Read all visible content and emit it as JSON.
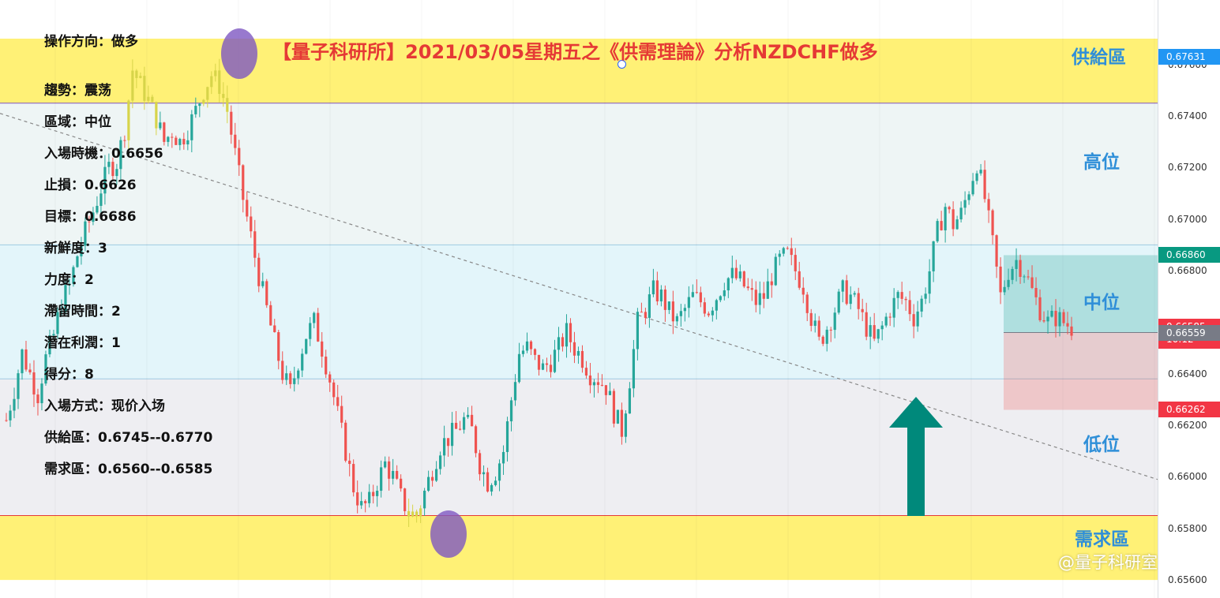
{
  "chart_data": {
    "type": "candlestick",
    "title": "【量子科研所】2021/03/05星期五之《供需理論》分析NZDCHF做多",
    "y_ticks": [
      "0.67600",
      "0.67400",
      "0.67200",
      "0.67000",
      "0.66800",
      "0.66400",
      "0.66200",
      "0.66000",
      "0.65800",
      "0.65600"
    ],
    "ylim": [
      0.6553,
      0.6785
    ],
    "price_tags": [
      {
        "value": "0.67631",
        "color": "#2196f3"
      },
      {
        "value": "0.66860",
        "color": "#089981"
      },
      {
        "value": "0.66585",
        "countdown": "10:12",
        "color": "#f23645"
      },
      {
        "value": "0.66559",
        "color": "#787b86"
      },
      {
        "value": "0.66262",
        "color": "#f23645"
      }
    ],
    "zones": [
      {
        "name": "供給區",
        "from": 0.6745,
        "to": 0.677,
        "color": "#fff176"
      },
      {
        "name": "高位",
        "from": 0.669,
        "to": 0.6745,
        "color": "#eef5f5"
      },
      {
        "name": "中位",
        "from": 0.6638,
        "to": 0.669,
        "color": "#e3f5fa"
      },
      {
        "name": "低位",
        "from": 0.6585,
        "to": 0.6638,
        "color": "#eeeef2"
      },
      {
        "name": "需求區",
        "from": 0.656,
        "to": 0.6585,
        "color": "#fff176"
      }
    ],
    "position": {
      "entry": 0.6656,
      "stop": 0.6626,
      "target": 0.6686
    },
    "trendline": {
      "from": {
        "bar": 0,
        "price": 0.6741
      },
      "to": {
        "bar": 290,
        "price": 0.6599
      }
    },
    "closes": [
      0.6622,
      0.6634,
      0.6648,
      0.664,
      0.6632,
      0.6646,
      0.6655,
      0.6668,
      0.6674,
      0.6686,
      0.6695,
      0.6703,
      0.6712,
      0.672,
      0.6722,
      0.6735,
      0.6758,
      0.6752,
      0.6746,
      0.6739,
      0.673,
      0.6734,
      0.673,
      0.6735,
      0.6742,
      0.675,
      0.6756,
      0.6752,
      0.6742,
      0.6725,
      0.6708,
      0.6693,
      0.6678,
      0.6665,
      0.6652,
      0.664,
      0.6633,
      0.6645,
      0.6655,
      0.666,
      0.665,
      0.6638,
      0.6624,
      0.661,
      0.6596,
      0.6588,
      0.659,
      0.6598,
      0.6605,
      0.66,
      0.6592,
      0.6586,
      0.6585,
      0.6594,
      0.6603,
      0.6612,
      0.6615,
      0.6618,
      0.6622,
      0.6618,
      0.6605,
      0.6598,
      0.6602,
      0.661,
      0.663,
      0.6648,
      0.665,
      0.6645,
      0.6642,
      0.6645,
      0.665,
      0.6656,
      0.665,
      0.6646,
      0.664,
      0.6638,
      0.6635,
      0.6625,
      0.6618,
      0.6638,
      0.666,
      0.6665,
      0.6672,
      0.667,
      0.6664,
      0.666,
      0.6665,
      0.667,
      0.6668,
      0.6665,
      0.667,
      0.6676,
      0.6678,
      0.6676,
      0.6672,
      0.6668,
      0.667,
      0.6678,
      0.6684,
      0.6686,
      0.668,
      0.6674,
      0.6662,
      0.6652,
      0.6658,
      0.6665,
      0.6672,
      0.667,
      0.6665,
      0.6658,
      0.6652,
      0.6658,
      0.6665,
      0.667,
      0.6668,
      0.6662,
      0.6668,
      0.668,
      0.6695,
      0.6705,
      0.6698,
      0.6702,
      0.6712,
      0.6722,
      0.6708,
      0.669,
      0.667,
      0.668,
      0.6684,
      0.668,
      0.6672,
      0.6665,
      0.666,
      0.6662,
      0.666,
      0.6658
    ]
  },
  "info": [
    "操作方向：做多",
    "趨勢：震荡",
    "區域：中位",
    "入場時機：0.6656",
    "止損：0.6626",
    "目標：0.6686",
    "新鮮度：3",
    "力度：2",
    "滯留時間：2",
    "潛在利潤：1",
    "得分：8",
    "入場方式：现价入场",
    "供給區：0.6745--0.6770",
    "需求區：0.6560--0.6585"
  ],
  "zone_labels": {
    "supply": "供給區",
    "high": "高位",
    "mid": "中位",
    "low": "低位",
    "demand": "需求區"
  },
  "watermark": "@量子科研室",
  "colors": {
    "up": "#26a69a",
    "down": "#ef5350",
    "title": "#e53935",
    "zone_label": "#2f8fd8",
    "arrow": "#00897b",
    "circle": "#7e57c2"
  }
}
